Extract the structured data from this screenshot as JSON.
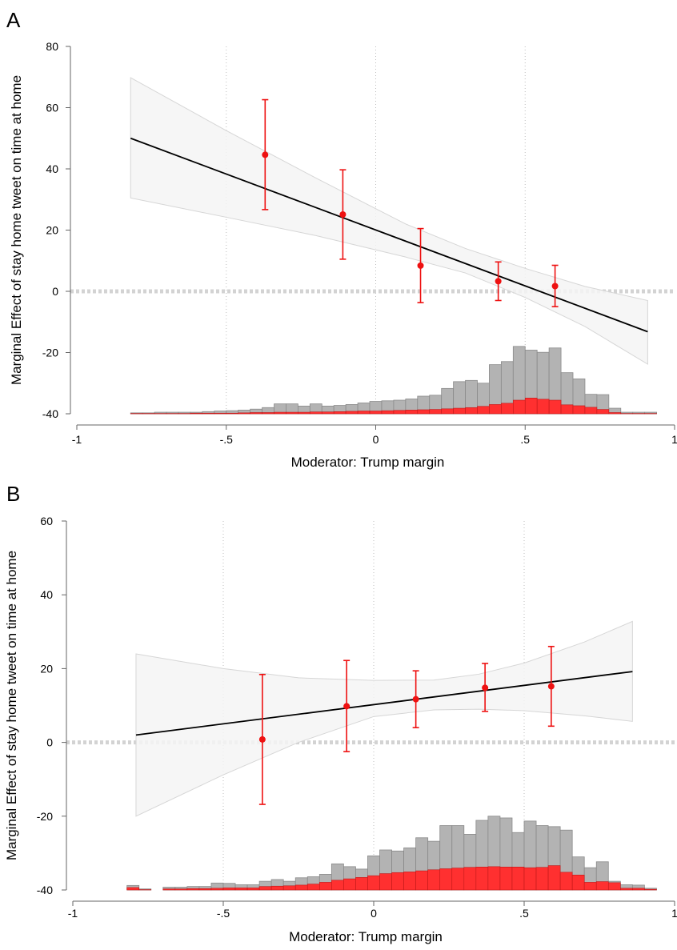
{
  "chart_data": [
    {
      "type": "line",
      "panel_label": "A",
      "xlabel": "Moderator: Trump margin",
      "ylabel": "Marginal Effect of stay home tweet on time at home",
      "xlim": [
        -1,
        1
      ],
      "ylim": [
        -40,
        80
      ],
      "x_ticks": [
        -1,
        -0.5,
        0,
        0.5,
        1
      ],
      "x_tick_labels": [
        "-1",
        "-.5",
        "0",
        ".5",
        "1"
      ],
      "y_ticks": [
        -40,
        -20,
        0,
        20,
        40,
        60,
        80
      ],
      "y_tick_labels": [
        "-40",
        "-20",
        "0",
        "20",
        "40",
        "60",
        "80"
      ],
      "grid": "vertical dotted",
      "colors": {
        "points": "#ee1111",
        "band": "#f4f4f4",
        "band_edge": "#d6d6d6",
        "hist_all": "#b3b3b3",
        "hist_treated": "#ff3030",
        "zero_line": "#d3d3d3"
      },
      "line": {
        "x": [
          -0.82,
          0.91
        ],
        "y": [
          50,
          -13.2
        ]
      },
      "band": {
        "x": [
          -0.82,
          -0.5,
          -0.2,
          0.1,
          0.3,
          0.5,
          0.7,
          0.91
        ],
        "lower": [
          30.5,
          24.2,
          18.2,
          11.2,
          6.0,
          -2.0,
          -11.5,
          -23.8
        ],
        "upper": [
          69.8,
          52.5,
          37.0,
          22.0,
          14.0,
          7.5,
          1.6,
          -3.0
        ]
      },
      "points": {
        "x": [
          -0.37,
          -0.11,
          0.15,
          0.41,
          0.6
        ],
        "y": [
          44.6,
          25.1,
          8.4,
          3.3,
          1.7
        ],
        "lower": [
          26.7,
          10.5,
          -3.7,
          -3.0,
          -5.0
        ],
        "upper": [
          62.6,
          39.7,
          20.5,
          9.6,
          8.5
        ]
      },
      "histogram": {
        "bin_start": -0.82,
        "bin_width": 0.04,
        "all": [
          0.3,
          0.3,
          0.5,
          0.5,
          0.5,
          0.5,
          0.7,
          0.9,
          1.0,
          1.2,
          1.5,
          2.0,
          3.2,
          3.2,
          2.5,
          3.2,
          2.5,
          2.7,
          3.0,
          3.5,
          4.0,
          4.2,
          4.4,
          4.8,
          5.7,
          6.0,
          8.2,
          10.4,
          10.8,
          9.9,
          15.9,
          16.9,
          21.8,
          20.6,
          19.9,
          21.3,
          13.3,
          11.3,
          6.3,
          6.2,
          1.8,
          0.5,
          0.5,
          0.5
        ],
        "treated": [
          0.1,
          0.1,
          0.1,
          0.1,
          0.1,
          0.2,
          0.2,
          0.2,
          0.2,
          0.3,
          0.4,
          0.4,
          0.5,
          0.5,
          0.5,
          0.6,
          0.6,
          0.7,
          0.8,
          0.9,
          0.9,
          1.0,
          1.1,
          1.2,
          1.3,
          1.4,
          1.6,
          1.8,
          2.0,
          2.4,
          3.0,
          3.4,
          4.4,
          5.1,
          4.7,
          4.4,
          2.9,
          2.6,
          2.1,
          1.4,
          0.4,
          0.1,
          0.1,
          0.1
        ]
      }
    },
    {
      "type": "line",
      "panel_label": "B",
      "xlabel": "Moderator: Trump margin",
      "ylabel": "Marginal Effect of stay home tweet on time at home",
      "xlim": [
        -1,
        1
      ],
      "ylim": [
        -40,
        60
      ],
      "x_ticks": [
        -1,
        -0.5,
        0,
        0.5,
        1
      ],
      "x_tick_labels": [
        "-1",
        "-.5",
        "0",
        ".5",
        "1"
      ],
      "y_ticks": [
        -40,
        -20,
        0,
        20,
        40,
        60
      ],
      "y_tick_labels": [
        "-40",
        "-20",
        "0",
        "20",
        "40",
        "60"
      ],
      "grid": "vertical dotted",
      "colors": {
        "points": "#ee1111",
        "band": "#f4f4f4",
        "band_edge": "#d6d6d6",
        "hist_all": "#b3b3b3",
        "hist_treated": "#ff3030",
        "zero_line": "#d3d3d3"
      },
      "line": {
        "x": [
          -0.79,
          0.86
        ],
        "y": [
          2.0,
          19.2
        ]
      },
      "band": {
        "x": [
          -0.79,
          -0.5,
          -0.25,
          0,
          0.2,
          0.35,
          0.5,
          0.7,
          0.86
        ],
        "lower": [
          -20.0,
          -8.8,
          0.0,
          7.0,
          8.8,
          9.0,
          8.6,
          7.2,
          5.7
        ],
        "upper": [
          24.0,
          20.0,
          17.5,
          16.8,
          16.9,
          18.5,
          21.5,
          27.2,
          32.8
        ]
      },
      "points": {
        "x": [
          -0.37,
          -0.09,
          0.14,
          0.37,
          0.59
        ],
        "y": [
          0.8,
          9.8,
          11.7,
          14.8,
          15.2
        ],
        "lower": [
          -16.8,
          -2.5,
          4.0,
          8.4,
          4.4
        ],
        "upper": [
          18.4,
          22.2,
          19.4,
          21.4,
          26.0
        ]
      },
      "histogram": {
        "bin_start": -0.82,
        "bin_width": 0.04,
        "all": [
          1.3,
          0.3,
          0.0,
          0.8,
          0.8,
          1.0,
          1.0,
          2.0,
          1.9,
          1.5,
          1.5,
          2.5,
          3.0,
          2.5,
          3.5,
          3.8,
          4.5,
          7.5,
          6.7,
          6.0,
          9.8,
          11.5,
          11.2,
          12.1,
          15.0,
          14.0,
          18.5,
          18.5,
          16.0,
          20.0,
          21.2,
          20.7,
          16.5,
          19.8,
          18.5,
          18.2,
          17.2,
          9.5,
          6.4,
          8.1,
          2.5,
          1.5,
          1.4,
          0.5
        ],
        "treated": [
          0.7,
          0.1,
          0.0,
          0.3,
          0.3,
          0.4,
          0.4,
          0.5,
          0.6,
          0.6,
          0.6,
          1.0,
          1.1,
          1.2,
          1.4,
          1.7,
          2.2,
          2.8,
          3.2,
          3.6,
          4.1,
          4.7,
          5.0,
          5.2,
          5.5,
          5.8,
          6.1,
          6.3,
          6.5,
          6.6,
          6.7,
          6.6,
          6.6,
          6.4,
          6.5,
          7.0,
          5.1,
          4.3,
          2.2,
          2.4,
          2.1,
          0.5,
          0.5,
          0.2
        ]
      }
    }
  ]
}
